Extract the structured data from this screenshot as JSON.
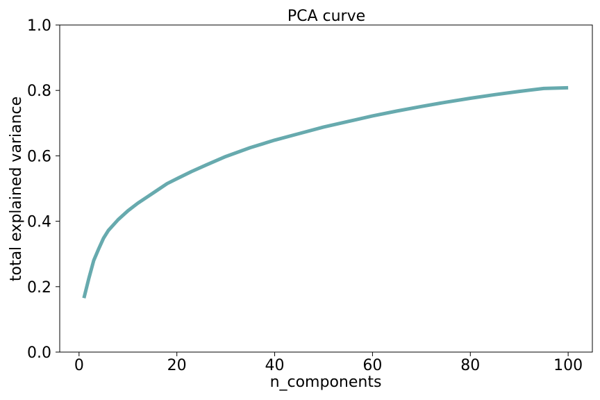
{
  "chart_data": {
    "type": "line",
    "title": "PCA curve",
    "xlabel": "n_components",
    "ylabel": "total explained variance",
    "xlim": [
      -3.95,
      104.95
    ],
    "ylim": [
      0.0,
      1.0
    ],
    "xticks": [
      0,
      20,
      40,
      60,
      80,
      100
    ],
    "yticks": [
      0.0,
      0.2,
      0.4,
      0.6,
      0.8,
      1.0
    ],
    "xtick_labels": [
      "0",
      "20",
      "40",
      "60",
      "80",
      "100"
    ],
    "ytick_labels": [
      "0.0",
      "0.2",
      "0.4",
      "0.6",
      "0.8",
      "1.0"
    ],
    "grid": false,
    "series": [
      {
        "color": "#67aaae",
        "x": [
          1,
          2,
          3,
          4,
          5,
          6,
          8,
          10,
          12,
          14,
          16,
          18,
          20,
          23,
          26,
          30,
          35,
          40,
          45,
          50,
          55,
          60,
          65,
          70,
          75,
          80,
          85,
          90,
          95,
          100
        ],
        "y": [
          0.165,
          0.225,
          0.28,
          0.315,
          0.348,
          0.372,
          0.405,
          0.432,
          0.455,
          0.475,
          0.495,
          0.515,
          0.53,
          0.552,
          0.572,
          0.598,
          0.625,
          0.648,
          0.668,
          0.688,
          0.705,
          0.722,
          0.737,
          0.751,
          0.764,
          0.776,
          0.787,
          0.797,
          0.806,
          0.808
        ]
      }
    ]
  }
}
